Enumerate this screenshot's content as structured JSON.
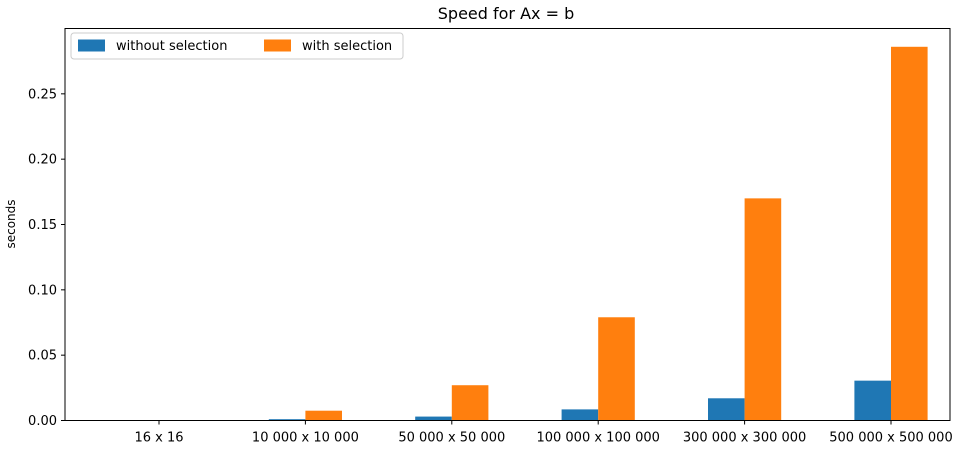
{
  "chart_data": {
    "type": "bar",
    "title": "Speed for Ax = b",
    "xlabel": "",
    "ylabel": "seconds",
    "categories": [
      "16 x 16",
      "10 000 x 10 000",
      "50 000 x 50 000",
      "100 000 x 100 000",
      "300 000 x 300 000",
      "500 000 x 500 000"
    ],
    "series": [
      {
        "name": "without selection",
        "color": "#1f77b4",
        "values": [
          0.0,
          0.001,
          0.003,
          0.0085,
          0.017,
          0.0305
        ]
      },
      {
        "name": "with selection",
        "color": "#ff7f0e",
        "values": [
          0.0,
          0.0075,
          0.027,
          0.079,
          0.17,
          0.286
        ]
      }
    ],
    "ylim": [
      0,
      0.3
    ],
    "yticks": [
      0.0,
      0.05,
      0.1,
      0.15,
      0.2,
      0.25
    ],
    "ytick_labels": [
      "0.00",
      "0.05",
      "0.10",
      "0.15",
      "0.20",
      "0.25"
    ],
    "grid": false,
    "legend": {
      "placement": "top-left",
      "ncol": 2
    }
  }
}
